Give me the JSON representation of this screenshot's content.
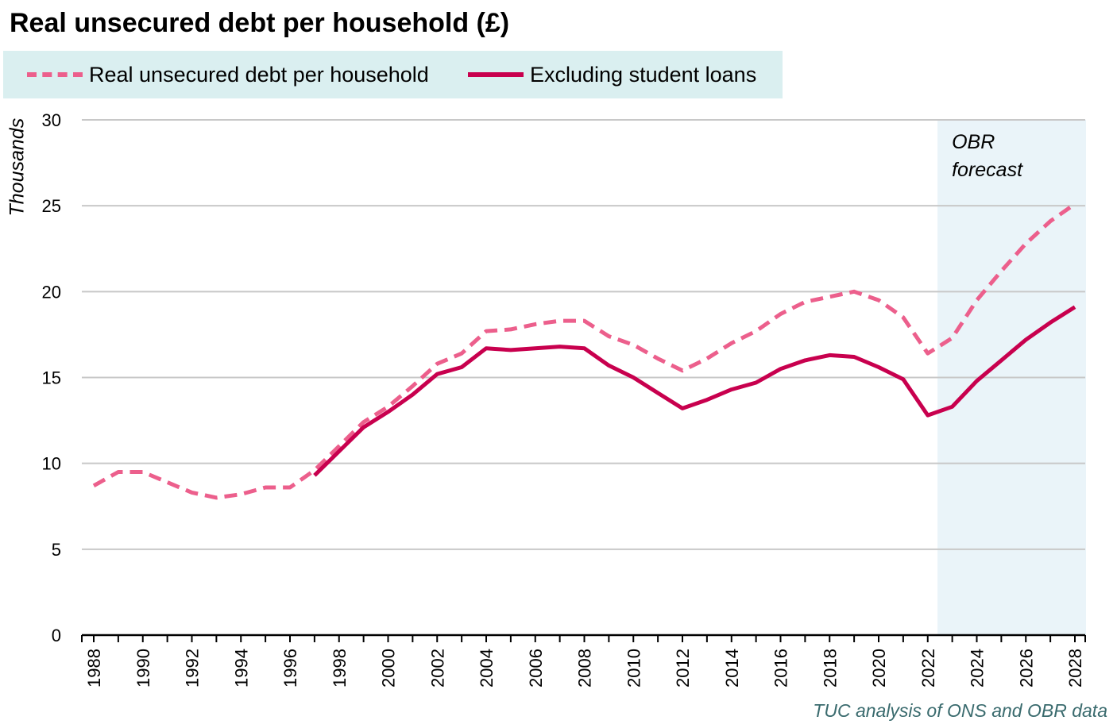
{
  "title": "Real unsecured debt per household (£)",
  "legend": {
    "series1_label": "Real unsecured debt per household",
    "series2_label": "Excluding student loans"
  },
  "ylabel": "Thousands",
  "forecast_label_line1": "OBR",
  "forecast_label_line2": "forecast",
  "source": "TUC analysis of ONS and OBR data",
  "colors": {
    "dashed_series": "#ec5f8c",
    "solid_series": "#c8004e",
    "forecast_band": "#eaf4f9",
    "legend_bg": "#daeff0",
    "gridline": "#c8c8c8"
  },
  "chart_data": {
    "type": "line",
    "title": "Real unsecured debt per household (£)",
    "xlabel": "",
    "ylabel": "Thousands",
    "xlim": [
      1988,
      2028
    ],
    "ylim": [
      0,
      30
    ],
    "yticks": [
      0,
      5,
      10,
      15,
      20,
      25,
      30
    ],
    "xticks": [
      "1988",
      "1990",
      "1992",
      "1994",
      "1996",
      "1998",
      "2000",
      "2002",
      "2004",
      "2006",
      "2008",
      "2010",
      "2012",
      "2014",
      "2016",
      "2018",
      "2020",
      "2022",
      "2024",
      "2026",
      "2028"
    ],
    "grid": true,
    "legend_position": "top",
    "forecast_region": [
      2022.4,
      2028.5
    ],
    "series": [
      {
        "name": "Real unsecured debt per household",
        "style": "dashed",
        "x": [
          1988,
          1989,
          1990,
          1991,
          1992,
          1993,
          1994,
          1995,
          1996,
          1997,
          1998,
          1999,
          2000,
          2001,
          2002,
          2003,
          2004,
          2005,
          2006,
          2007,
          2008,
          2009,
          2010,
          2011,
          2012,
          2013,
          2014,
          2015,
          2016,
          2017,
          2018,
          2019,
          2020,
          2021,
          2022,
          2023,
          2024,
          2025,
          2026,
          2027,
          2028
        ],
        "values": [
          8.7,
          9.5,
          9.5,
          8.9,
          8.3,
          8.0,
          8.2,
          8.6,
          8.6,
          9.6,
          11.0,
          12.4,
          13.3,
          14.5,
          15.8,
          16.4,
          17.7,
          17.8,
          18.1,
          18.3,
          18.3,
          17.4,
          16.9,
          16.1,
          15.4,
          16.1,
          17.0,
          17.7,
          18.7,
          19.4,
          19.7,
          20.0,
          19.5,
          18.5,
          16.4,
          17.3,
          19.5,
          21.2,
          22.8,
          24.1,
          25.1
        ]
      },
      {
        "name": "Excluding student loans",
        "style": "solid",
        "x": [
          1997,
          1998,
          1999,
          2000,
          2001,
          2002,
          2003,
          2004,
          2005,
          2006,
          2007,
          2008,
          2009,
          2010,
          2011,
          2012,
          2013,
          2014,
          2015,
          2016,
          2017,
          2018,
          2019,
          2020,
          2021,
          2022,
          2023,
          2024,
          2025,
          2026,
          2027,
          2028
        ],
        "values": [
          9.3,
          10.7,
          12.1,
          13.0,
          14.0,
          15.2,
          15.6,
          16.7,
          16.6,
          16.7,
          16.8,
          16.7,
          15.7,
          15.0,
          14.1,
          13.2,
          13.7,
          14.3,
          14.7,
          15.5,
          16.0,
          16.3,
          16.2,
          15.6,
          14.9,
          12.8,
          13.3,
          14.8,
          16.0,
          17.2,
          18.2,
          19.1
        ]
      }
    ]
  }
}
